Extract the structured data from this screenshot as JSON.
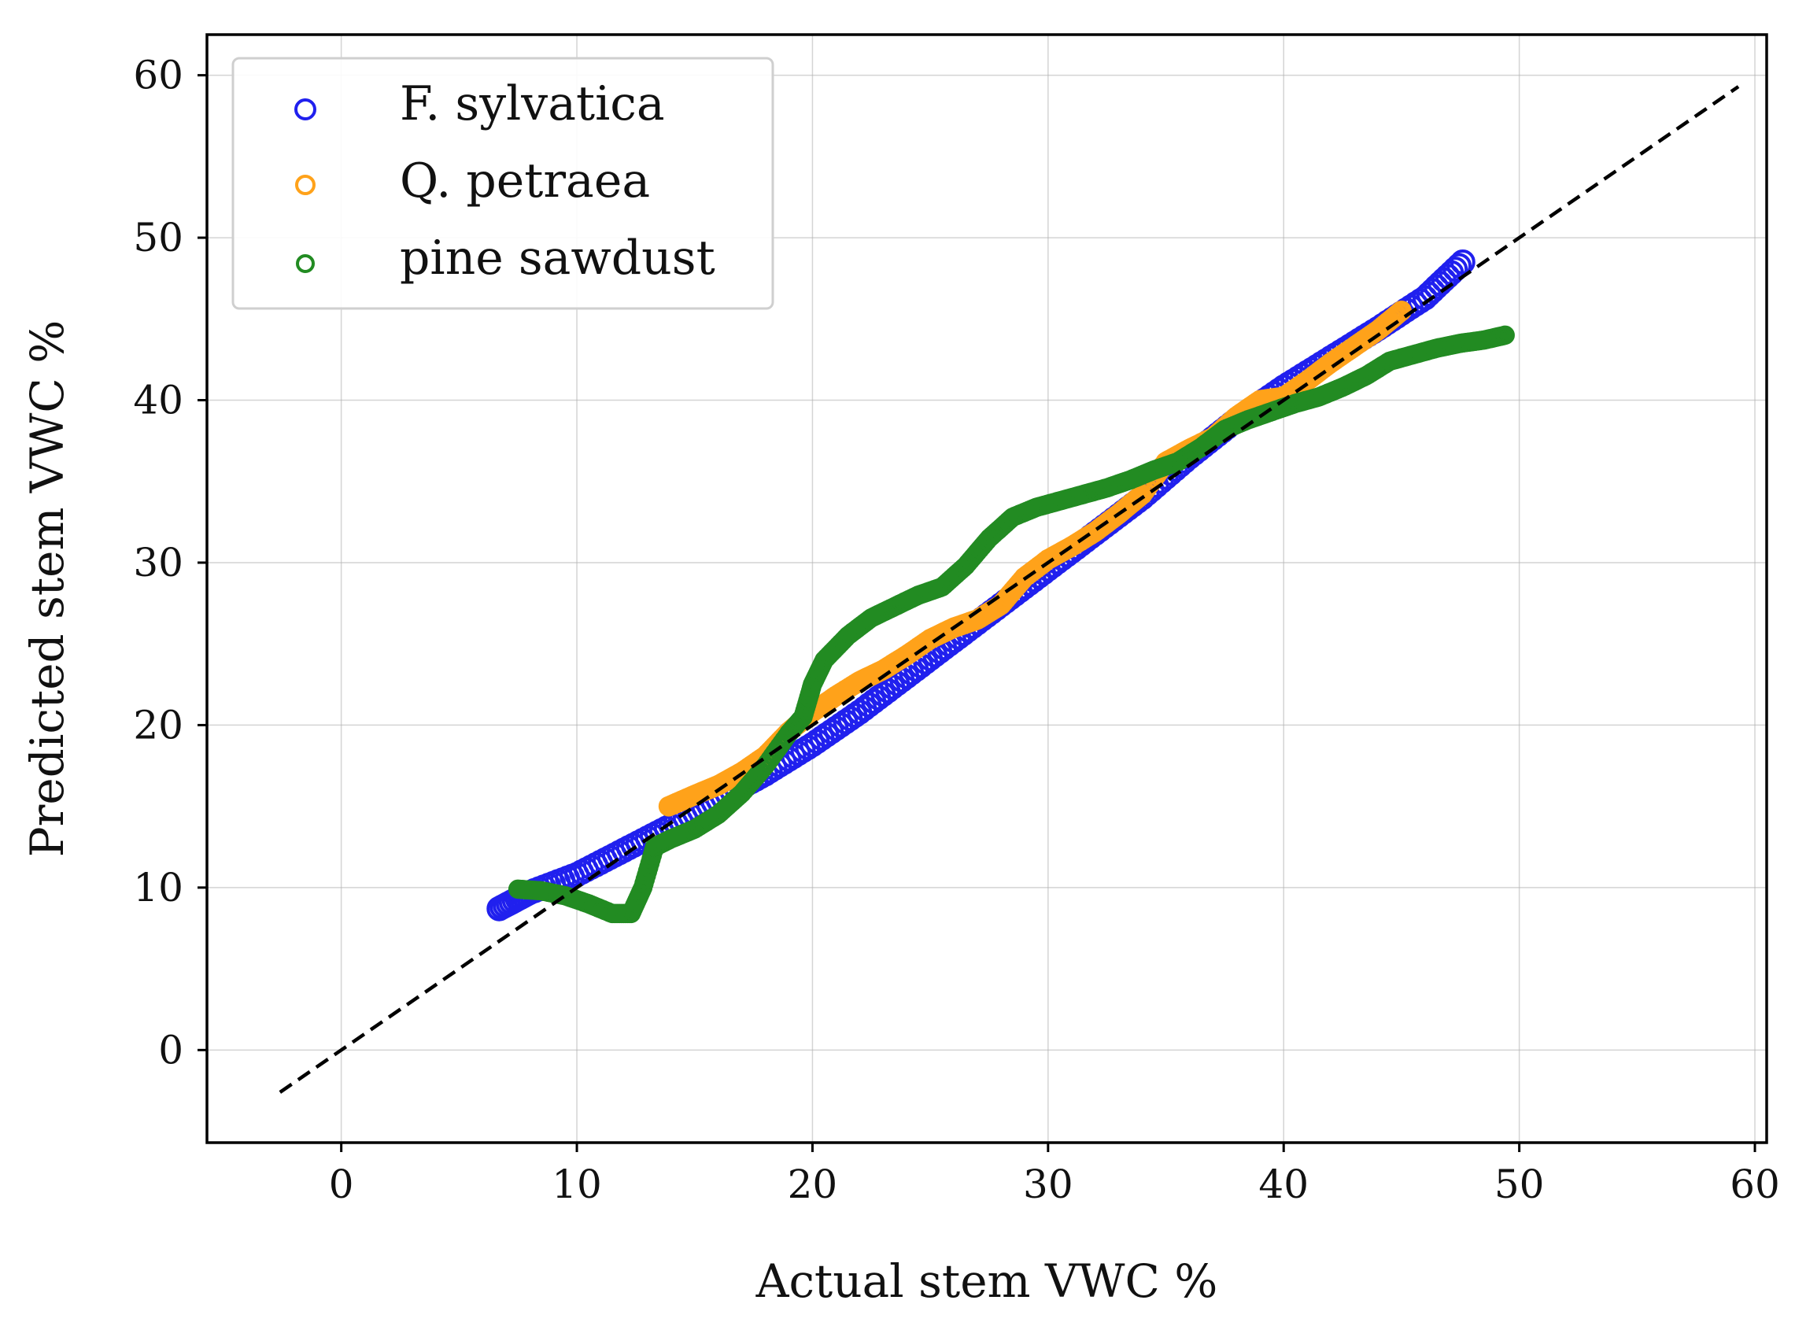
{
  "chart_data": {
    "type": "scatter",
    "title": "",
    "xlabel": "Actual stem VWC %",
    "ylabel": "Predicted stem VWC %",
    "xlim": [
      -5.7,
      60.5
    ],
    "ylim": [
      -5.7,
      62.5
    ],
    "xticks": [
      0,
      10,
      20,
      30,
      40,
      50,
      60
    ],
    "yticks": [
      0,
      10,
      20,
      30,
      40,
      50,
      60
    ],
    "grid": true,
    "legend_position": "top-left",
    "series": [
      {
        "name": "F. sylvatica",
        "color": "#2020ee",
        "marker": "open-circle",
        "points": [
          [
            6.7,
            8.7
          ],
          [
            8,
            9.7
          ],
          [
            10,
            10.8
          ],
          [
            12,
            12.3
          ],
          [
            14,
            13.8
          ],
          [
            16,
            15.4
          ],
          [
            18,
            17
          ],
          [
            20,
            18.8
          ],
          [
            22,
            20.8
          ],
          [
            24,
            23
          ],
          [
            26,
            25.2
          ],
          [
            28,
            27.4
          ],
          [
            30,
            29.6
          ],
          [
            32,
            31.8
          ],
          [
            34,
            34
          ],
          [
            36,
            36.5
          ],
          [
            38,
            38.8
          ],
          [
            40,
            40.8
          ],
          [
            42,
            42.6
          ],
          [
            44,
            44.4
          ],
          [
            46,
            46.3
          ],
          [
            47.6,
            48.5
          ]
        ]
      },
      {
        "name": "Q. petraea",
        "color": "#ffa21a",
        "marker": "open-circle",
        "points": [
          [
            13.9,
            15
          ],
          [
            15,
            15.7
          ],
          [
            16,
            16.3
          ],
          [
            17,
            17.1
          ],
          [
            18,
            18.1
          ],
          [
            19,
            19.6
          ],
          [
            20,
            20.8
          ],
          [
            21,
            21.8
          ],
          [
            22,
            22.7
          ],
          [
            23,
            23.4
          ],
          [
            24,
            24.3
          ],
          [
            25,
            25.3
          ],
          [
            26,
            26
          ],
          [
            27,
            26.5
          ],
          [
            28,
            27.4
          ],
          [
            29,
            29.1
          ],
          [
            30,
            30.2
          ],
          [
            31,
            31
          ],
          [
            32,
            31.9
          ],
          [
            33,
            33
          ],
          [
            34,
            34.2
          ],
          [
            35,
            36.2
          ],
          [
            36,
            37
          ],
          [
            37,
            37.7
          ],
          [
            38,
            39
          ],
          [
            39,
            40
          ],
          [
            40,
            40.2
          ],
          [
            41,
            41.2
          ],
          [
            42,
            42.3
          ],
          [
            43,
            43.3
          ],
          [
            44,
            44.3
          ],
          [
            45,
            45.5
          ]
        ]
      },
      {
        "name": "pine sawdust",
        "color": "#228b22",
        "marker": "open-circle",
        "points": [
          [
            7.5,
            9.9
          ],
          [
            8.5,
            9.8
          ],
          [
            9.5,
            9.5
          ],
          [
            10.5,
            9
          ],
          [
            11.5,
            8.4
          ],
          [
            12.3,
            8.4
          ],
          [
            12.8,
            10
          ],
          [
            13.3,
            12.5
          ],
          [
            14,
            13
          ],
          [
            15,
            13.6
          ],
          [
            16,
            14.5
          ],
          [
            17,
            15.8
          ],
          [
            18,
            17.5
          ],
          [
            19,
            19.5
          ],
          [
            19.6,
            20.5
          ],
          [
            20,
            22.5
          ],
          [
            20.5,
            24
          ],
          [
            21.5,
            25.5
          ],
          [
            22.5,
            26.6
          ],
          [
            23.5,
            27.3
          ],
          [
            24.5,
            28
          ],
          [
            25.5,
            28.5
          ],
          [
            26.5,
            29.8
          ],
          [
            27.5,
            31.5
          ],
          [
            28.5,
            32.8
          ],
          [
            29.5,
            33.4
          ],
          [
            30.5,
            33.8
          ],
          [
            31.5,
            34.2
          ],
          [
            32.5,
            34.6
          ],
          [
            33.5,
            35.1
          ],
          [
            34.5,
            35.7
          ],
          [
            35.5,
            36.2
          ],
          [
            36.5,
            37.1
          ],
          [
            37.5,
            38.2
          ],
          [
            38.5,
            38.8
          ],
          [
            39.5,
            39.3
          ],
          [
            40.5,
            39.8
          ],
          [
            41.5,
            40.2
          ],
          [
            42.5,
            40.8
          ],
          [
            43.5,
            41.5
          ],
          [
            44.5,
            42.4
          ],
          [
            45.5,
            42.8
          ],
          [
            46.5,
            43.2
          ],
          [
            47.5,
            43.5
          ],
          [
            48.5,
            43.7
          ],
          [
            49.4,
            44
          ]
        ]
      }
    ],
    "reference_line": {
      "style": "dashed",
      "color": "#000000",
      "from": [
        -2.6,
        -2.6
      ],
      "to": [
        59.3,
        59.3
      ]
    }
  }
}
